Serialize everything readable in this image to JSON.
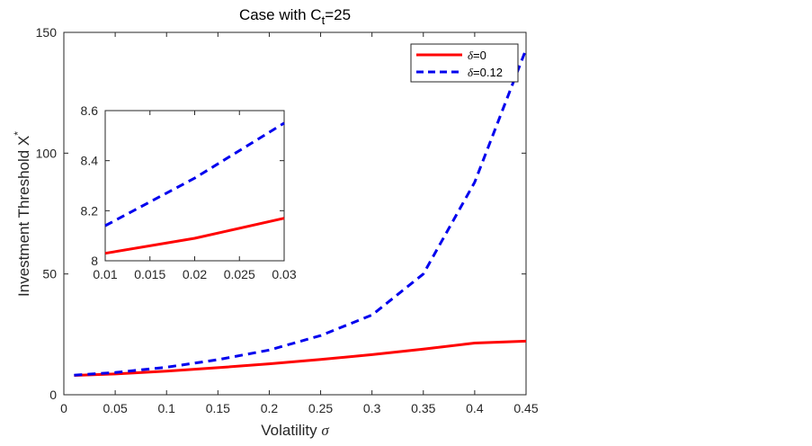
{
  "chart_data": {
    "type": "line",
    "title": "Case with C",
    "title_subscript": "t",
    "title_suffix": "=25",
    "xlabel": "Volatility",
    "xlabel_symbol": "σ",
    "ylabel": "Investment Threshold X",
    "ylabel_superscript": "*",
    "xlim": [
      0,
      0.45
    ],
    "ylim": [
      0,
      150
    ],
    "xticks": [
      "0",
      "0.05",
      "0.1",
      "0.15",
      "0.2",
      "0.25",
      "0.3",
      "0.35",
      "0.4",
      "0.45"
    ],
    "yticks": [
      "0",
      "50",
      "100",
      "150"
    ],
    "x": [
      0.01,
      0.05,
      0.1,
      0.15,
      0.2,
      0.25,
      0.3,
      0.35,
      0.4,
      0.45
    ],
    "series": [
      {
        "name": "δ=0",
        "legend_symbol": "δ",
        "legend_value": "=0",
        "color": "#ff0000",
        "style": "solid",
        "values": [
          8.0,
          8.6,
          9.8,
          11.2,
          12.8,
          14.6,
          16.6,
          18.9,
          21.4,
          22.2
        ]
      },
      {
        "name": "δ=0.12",
        "legend_symbol": "δ",
        "legend_value": "=0.12",
        "color": "#0000ee",
        "style": "dashed",
        "values": [
          8.1,
          9.2,
          11.4,
          14.5,
          18.5,
          24.5,
          33.0,
          50.0,
          88.0,
          143.0
        ]
      }
    ],
    "legend_position": "top-right",
    "inset": {
      "xlim": [
        0.01,
        0.03
      ],
      "ylim": [
        8.0,
        8.6
      ],
      "xticks": [
        "0.01",
        "0.015",
        "0.02",
        "0.025",
        "0.03"
      ],
      "yticks": [
        "8",
        "8.2",
        "8.4",
        "8.6"
      ],
      "x": [
        0.01,
        0.02,
        0.03
      ],
      "series": [
        {
          "name": "δ=0",
          "color": "#ff0000",
          "style": "solid",
          "values": [
            8.03,
            8.09,
            8.17
          ]
        },
        {
          "name": "δ=0.12",
          "color": "#0000ee",
          "style": "dashed",
          "values": [
            8.14,
            8.33,
            8.55
          ]
        }
      ]
    }
  }
}
